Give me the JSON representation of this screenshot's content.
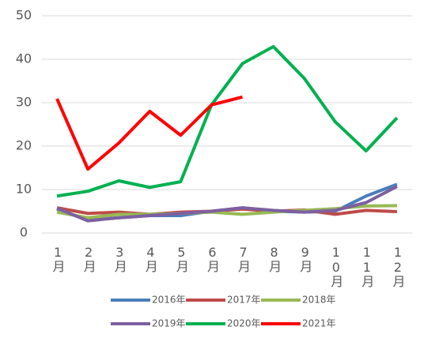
{
  "chart_data": {
    "type": "line",
    "categories": [
      "1月",
      "2月",
      "3月",
      "4月",
      "5月",
      "6月",
      "7月",
      "8月",
      "9月",
      "10月",
      "11月",
      "12月"
    ],
    "series": [
      {
        "name": "2016年",
        "color": "#4a7ebb",
        "values": [
          5.5,
          3,
          3.5,
          4,
          4,
          5,
          5.8,
          5,
          4.8,
          5,
          8.5,
          11.2
        ]
      },
      {
        "name": "2017年",
        "color": "#be4b48",
        "values": [
          5.8,
          4.5,
          4.8,
          4.3,
          4.8,
          5,
          5.5,
          5,
          5.3,
          4.3,
          5.2,
          4.9
        ]
      },
      {
        "name": "2018年",
        "color": "#98b954",
        "values": [
          4.8,
          3.5,
          4.3,
          4.3,
          4.5,
          4.8,
          4.3,
          4.8,
          5.2,
          5.6,
          6.2,
          6.3
        ]
      },
      {
        "name": "2019年",
        "color": "#7d60a0",
        "values": [
          5.7,
          2.8,
          3.5,
          4,
          4.5,
          5,
          5.8,
          5.2,
          4.8,
          5.2,
          7,
          10.7
        ]
      },
      {
        "name": "2020年",
        "color": "#00b050",
        "values": [
          8.5,
          9.6,
          12,
          10.5,
          11.8,
          29.5,
          39,
          42.9,
          35.6,
          25.6,
          18.9,
          26.5
        ]
      },
      {
        "name": "2021年",
        "color": "#ff0000",
        "values": [
          30.9,
          14.7,
          20.7,
          28,
          22.5,
          29.5,
          31.3,
          null,
          null,
          null,
          null,
          null
        ]
      }
    ],
    "ylim": [
      0,
      50
    ],
    "yticks": [
      0,
      10,
      20,
      30,
      40,
      50
    ],
    "grid": true
  }
}
